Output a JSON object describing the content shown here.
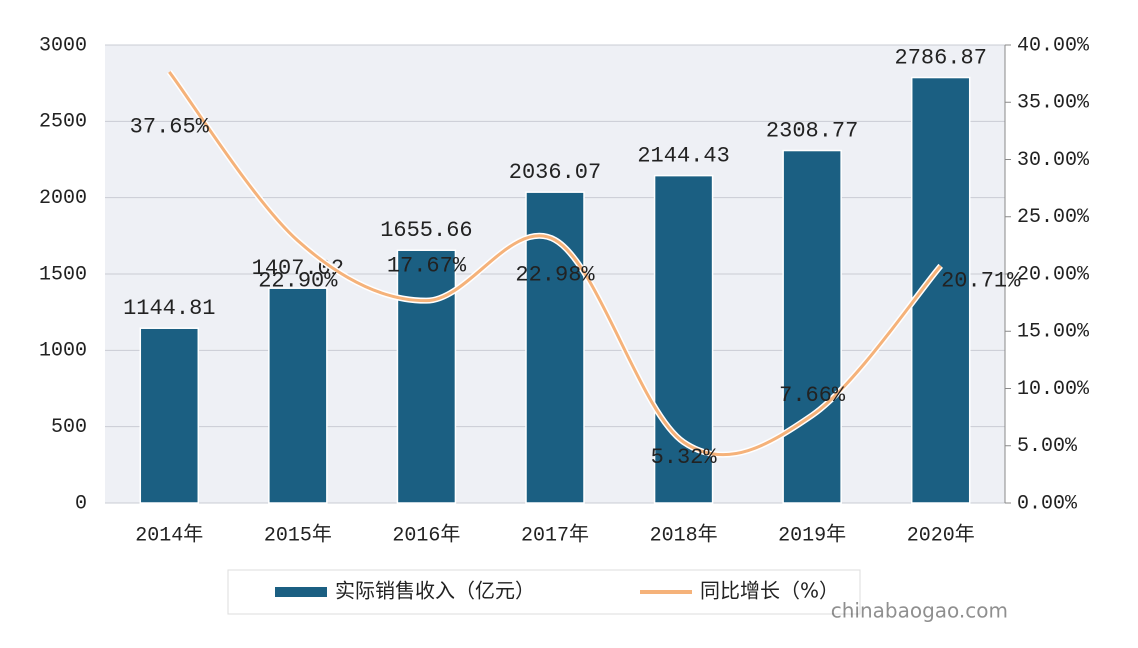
{
  "chart_data": {
    "type": "bar-line",
    "categories": [
      "2014年",
      "2015年",
      "2016年",
      "2017年",
      "2018年",
      "2019年",
      "2020年"
    ],
    "series": [
      {
        "name": "实际销售收入（亿元）",
        "color": "#1b5f82",
        "type": "bar",
        "values": [
          1144.81,
          1407.02,
          1655.66,
          2036.07,
          2144.43,
          2308.77,
          2786.87
        ]
      },
      {
        "name": "同比增长（%）",
        "color": "#f5b27a",
        "type": "line",
        "axis": "y2",
        "values": [
          37.65,
          22.9,
          17.67,
          22.98,
          5.32,
          7.66,
          20.71
        ],
        "value_labels": [
          "37.65%",
          "22.90%",
          "17.67%",
          "22.98%",
          "5.32%",
          "7.66%",
          "20.71%"
        ]
      }
    ],
    "ylim": [
      0,
      3000
    ],
    "yticks": [
      0,
      500,
      1000,
      1500,
      2000,
      2500,
      3000
    ],
    "y2lim": [
      0,
      40
    ],
    "y2ticks": [
      {
        "value": 0,
        "label": "0.00%"
      },
      {
        "value": 5,
        "label": "5.00%"
      },
      {
        "value": 10,
        "label": "10.00%"
      },
      {
        "value": 15,
        "label": "15.00%"
      },
      {
        "value": 20,
        "label": "20.00%"
      },
      {
        "value": 25,
        "label": "25.00%"
      },
      {
        "value": 30,
        "label": "30.00%"
      },
      {
        "value": 35,
        "label": "35.00%"
      },
      {
        "value": 40,
        "label": "40.00%"
      }
    ],
    "grid": true,
    "legend": "bottom",
    "watermark": "chinabaogao.com"
  }
}
